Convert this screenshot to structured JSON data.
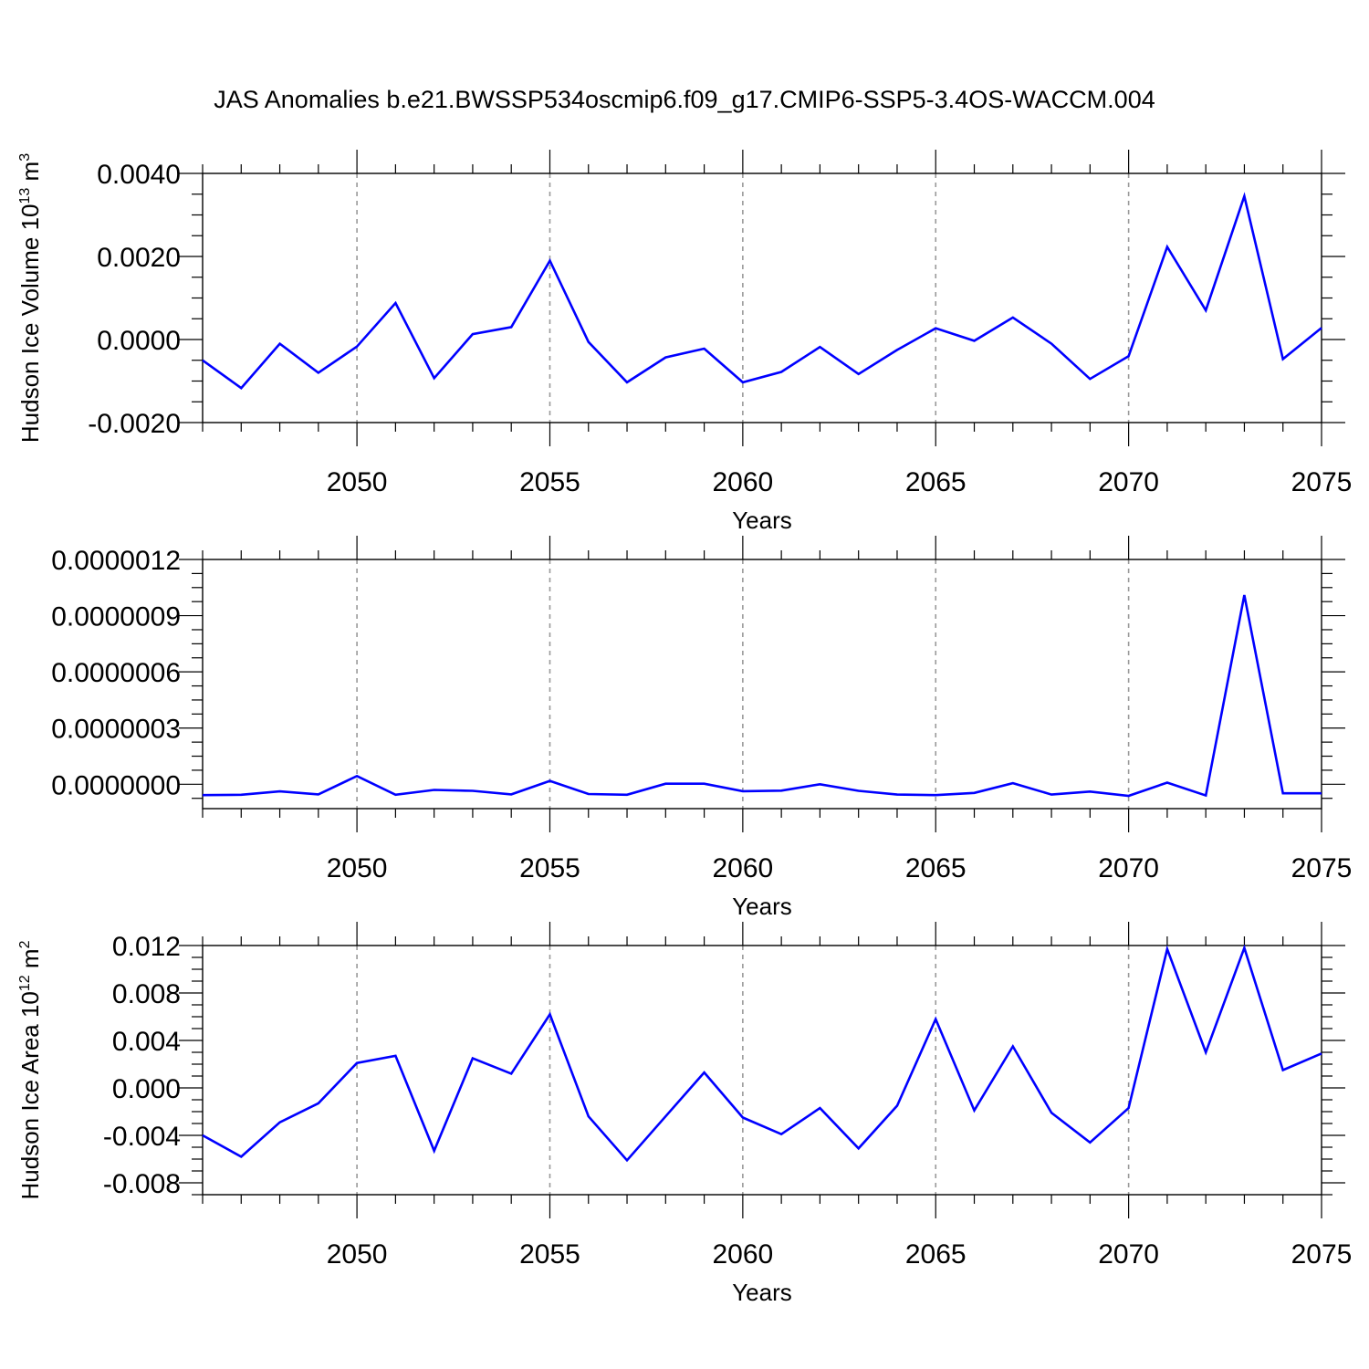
{
  "chart_data": [
    {
      "type": "line",
      "title": "JAS Anomalies b.e21.BWSSP534oscmip6.f09_g17.CMIP6-SSP5-3.4OS-WACCM.004",
      "xlabel": "Years",
      "ylabel": "Hudson Ice Volume 10",
      "ylabel_sup": "13",
      "ylabel_unit": " m",
      "ylabel_unit_sup": "3",
      "xlim": [
        2046,
        2075
      ],
      "ylim": [
        -0.002,
        0.004
      ],
      "xticks": [
        2050,
        2055,
        2060,
        2065,
        2070,
        2075
      ],
      "yticks": [
        {
          "value": -0.002,
          "label": "-0.0020"
        },
        {
          "value": 0.0,
          "label": "0.0000"
        },
        {
          "value": 0.002,
          "label": "0.0020"
        },
        {
          "value": 0.004,
          "label": "0.0040"
        }
      ],
      "grid": "vertical dashed at labeled years",
      "series": [
        {
          "color": "#0000ff",
          "x": [
            2046,
            2047,
            2048,
            2049,
            2050,
            2051,
            2052,
            2053,
            2054,
            2055,
            2056,
            2057,
            2058,
            2059,
            2060,
            2061,
            2062,
            2063,
            2064,
            2065,
            2066,
            2067,
            2068,
            2069,
            2070,
            2071,
            2072,
            2073,
            2074,
            2075
          ],
          "y": [
            -0.0005,
            -0.00117,
            -0.0001,
            -0.0008,
            -0.00017,
            0.00088,
            -0.00093,
            0.00013,
            0.0003,
            0.0019,
            -6e-05,
            -0.00103,
            -0.00043,
            -0.00022,
            -0.00103,
            -0.00078,
            -0.00018,
            -0.00083,
            -0.00025,
            0.00027,
            -3e-05,
            0.00053,
            -0.0001,
            -0.00095,
            -0.0004,
            0.00223,
            0.0007,
            0.00345,
            -0.00047,
            0.00028
          ]
        }
      ]
    },
    {
      "type": "line",
      "title": "",
      "xlabel": "Years",
      "ylabel": "",
      "xlim": [
        2046,
        2075
      ],
      "ylim": [
        -1.3e-07,
        1.2e-06
      ],
      "xticks": [
        2050,
        2055,
        2060,
        2065,
        2070,
        2075
      ],
      "yticks": [
        {
          "value": 0.0,
          "label": "0.0000000"
        },
        {
          "value": 3e-07,
          "label": "0.0000003"
        },
        {
          "value": 6e-07,
          "label": "0.0000006"
        },
        {
          "value": 9e-07,
          "label": "0.0000009"
        },
        {
          "value": 1.2e-06,
          "label": "0.0000012"
        }
      ],
      "grid": "vertical dashed at labeled years",
      "series": [
        {
          "color": "#0000ff",
          "x": [
            2046,
            2047,
            2048,
            2049,
            2050,
            2051,
            2052,
            2053,
            2054,
            2055,
            2056,
            2057,
            2058,
            2059,
            2060,
            2061,
            2062,
            2063,
            2064,
            2065,
            2066,
            2067,
            2068,
            2069,
            2070,
            2071,
            2072,
            2073,
            2074,
            2075
          ],
          "y": [
            -5.8e-08,
            -5.6e-08,
            -3.8e-08,
            -5.4e-08,
            4.4e-08,
            -5.6e-08,
            -3e-08,
            -3.5e-08,
            -5.4e-08,
            1.8e-08,
            -5.2e-08,
            -5.6e-08,
            3e-09,
            3e-09,
            -3.7e-08,
            -3.4e-08,
            0.0,
            -3.5e-08,
            -5.5e-08,
            -5.8e-08,
            -4.6e-08,
            6e-09,
            -5.5e-08,
            -3.9e-08,
            -6.2e-08,
            9e-09,
            -6e-08,
            1.01e-06,
            -4.8e-08,
            -4.8e-08
          ]
        }
      ]
    },
    {
      "type": "line",
      "title": "",
      "xlabel": "Years",
      "ylabel": "Hudson Ice Area 10",
      "ylabel_sup": "12",
      "ylabel_unit": " m",
      "ylabel_unit_sup": "2",
      "xlim": [
        2046,
        2075
      ],
      "ylim": [
        -0.009,
        0.012
      ],
      "xticks": [
        2050,
        2055,
        2060,
        2065,
        2070,
        2075
      ],
      "yticks": [
        {
          "value": -0.008,
          "label": "-0.008"
        },
        {
          "value": -0.004,
          "label": "-0.004"
        },
        {
          "value": 0.0,
          "label": "0.000"
        },
        {
          "value": 0.004,
          "label": "0.004"
        },
        {
          "value": 0.008,
          "label": "0.008"
        },
        {
          "value": 0.012,
          "label": "0.012"
        }
      ],
      "grid": "vertical dashed at labeled years",
      "series": [
        {
          "color": "#0000ff",
          "x": [
            2046,
            2047,
            2048,
            2049,
            2050,
            2051,
            2052,
            2053,
            2054,
            2055,
            2056,
            2057,
            2058,
            2059,
            2060,
            2061,
            2062,
            2063,
            2064,
            2065,
            2066,
            2067,
            2068,
            2069,
            2070,
            2071,
            2072,
            2073,
            2074,
            2075
          ],
          "y": [
            -0.004,
            -0.0058,
            -0.0029,
            -0.0013,
            0.0021,
            0.0027,
            -0.0053,
            0.0025,
            0.0012,
            0.0062,
            -0.0024,
            -0.0061,
            -0.0024,
            0.0013,
            -0.0025,
            -0.0039,
            -0.0017,
            -0.0051,
            -0.0015,
            0.0058,
            -0.0019,
            0.0035,
            -0.0021,
            -0.0046,
            -0.0017,
            0.0117,
            0.003,
            0.0118,
            0.0015,
            0.0029
          ]
        }
      ]
    }
  ]
}
